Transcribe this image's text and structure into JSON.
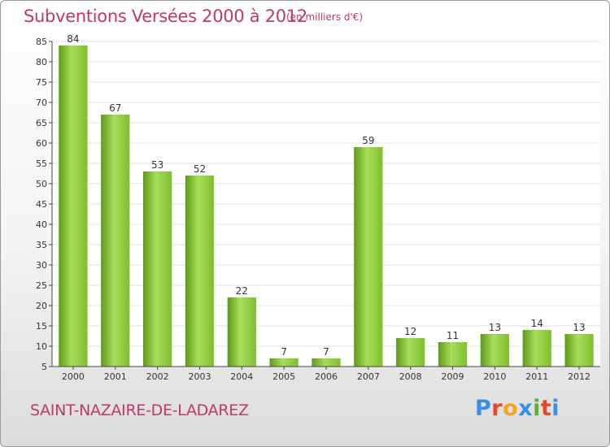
{
  "header": {
    "title": "Subventions Versées 2000 à 2012",
    "subtitle": "(en milliers d'€)"
  },
  "footer": {
    "commune": "SAINT-NAZAIRE-DE-LADAREZ",
    "logo_text": "Proxiti",
    "logo_colors": [
      "#3a8ee6",
      "#e8452c",
      "#f4a51c",
      "#3a8ee6",
      "#5ab033",
      "#e8452c",
      "#3a8ee6"
    ]
  },
  "chart_data": {
    "type": "bar",
    "title": "Subventions Versées 2000 à 2012",
    "subtitle": "(en milliers d'€)",
    "categories": [
      "2000",
      "2001",
      "2002",
      "2003",
      "2004",
      "2005",
      "2006",
      "2007",
      "2008",
      "2009",
      "2010",
      "2011",
      "2012"
    ],
    "values": [
      84,
      67,
      53,
      52,
      22,
      7,
      7,
      59,
      12,
      11,
      13,
      14,
      13
    ],
    "data_labels": [
      "84",
      "67",
      "53",
      "52",
      "22",
      "7",
      "7",
      "59",
      "12",
      "11",
      "13",
      "14",
      "13"
    ],
    "ylim": [
      5,
      85
    ],
    "yticks": [
      5,
      10,
      15,
      20,
      25,
      30,
      35,
      40,
      45,
      50,
      55,
      60,
      65,
      70,
      75,
      80,
      85
    ],
    "ytick_labels": [
      "5",
      "10",
      "15",
      "20",
      "25",
      "30",
      "35",
      "40",
      "45",
      "50",
      "55",
      "60",
      "65",
      "70",
      "75",
      "80",
      "85"
    ],
    "grid": "horizontal",
    "bar_color": "#7fbf2e",
    "bar_highlight": "#a7dd5a",
    "bar_dark": "#5e9a1a"
  }
}
